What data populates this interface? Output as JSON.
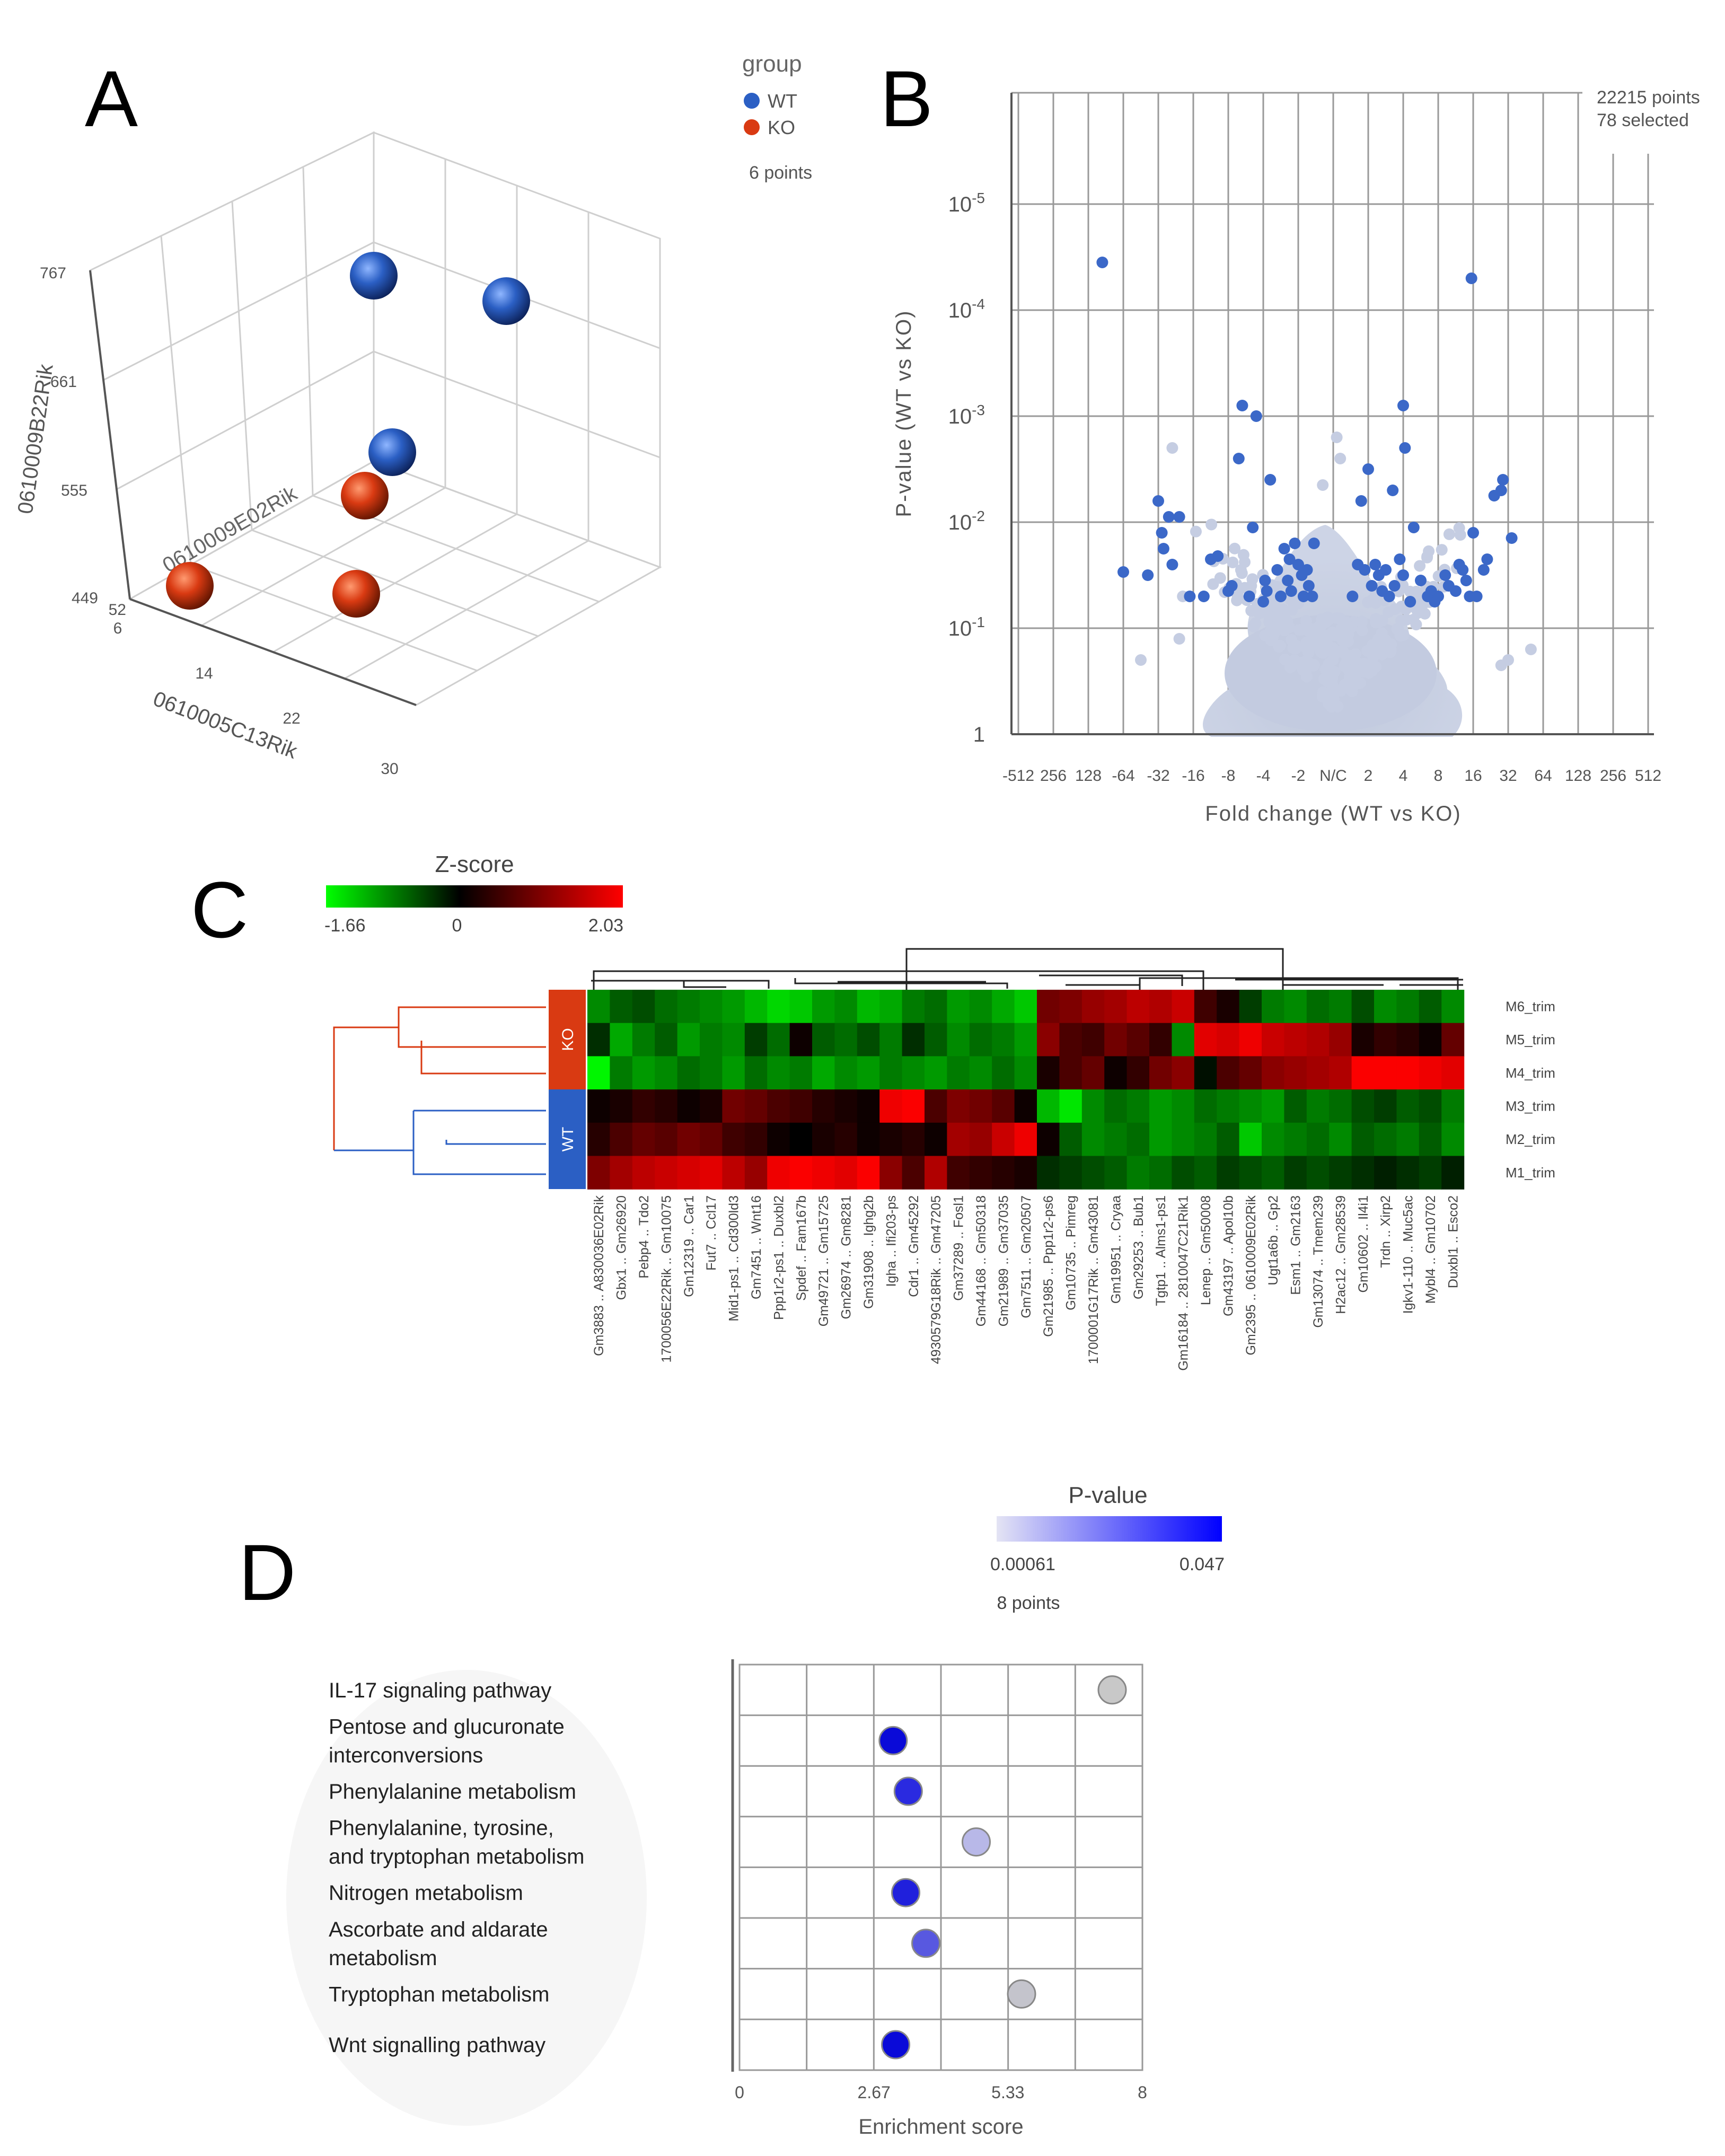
{
  "panels": {
    "a": "A",
    "b": "B",
    "c": "C",
    "d": "D"
  },
  "colors": {
    "wt": "#2b5fc4",
    "ko": "#d93a12",
    "volcano_grey": "#bfc8dc",
    "volcano_blue": "#3b68c8"
  },
  "chart_data": [
    {
      "id": "pca3d",
      "type": "scatter",
      "legend": {
        "title": "group",
        "entries": [
          "WT",
          "KO"
        ],
        "points_label": "6 points",
        "placement": "top-right"
      },
      "axes": {
        "x": {
          "label": "0610005C13Rik",
          "ticks": [
            "6",
            "14",
            "22",
            "30"
          ]
        },
        "y": {
          "label": "0610009B22Rik",
          "ticks": [
            "449",
            "555",
            "661",
            "767"
          ]
        },
        "z": {
          "label": "0610009E02Rik",
          "ticks": [
            "52"
          ]
        }
      },
      "points": [
        {
          "group": "WT"
        },
        {
          "group": "WT"
        },
        {
          "group": "WT"
        },
        {
          "group": "KO"
        },
        {
          "group": "KO"
        },
        {
          "group": "KO"
        }
      ]
    },
    {
      "id": "volcano",
      "type": "scatter",
      "xlabel": "Fold change (WT vs KO)",
      "ylabel": "P-value (WT vs KO)",
      "x_ticks": [
        "-512",
        "256",
        "128",
        "-64",
        "-32",
        "-16",
        "-8",
        "-4",
        "-2",
        "N/C",
        "2",
        "4",
        "8",
        "16",
        "32",
        "64",
        "128",
        "256",
        "512"
      ],
      "y_ticks": [
        "1",
        "10-1",
        "10-2",
        "10-3",
        "10-4",
        "10-5"
      ],
      "y_scale": "log",
      "counts": [
        "22215 points",
        "78 selected"
      ],
      "selected_points": [
        [
          -6.6,
          4.45
        ],
        [
          -6.0,
          1.53
        ],
        [
          -5.0,
          2.2
        ],
        [
          -4.9,
          1.9
        ],
        [
          -4.85,
          1.75
        ],
        [
          -4.7,
          2.05
        ],
        [
          -4.6,
          1.6
        ],
        [
          -4.4,
          2.05
        ],
        [
          -3.5,
          1.65
        ],
        [
          -3.3,
          1.68
        ],
        [
          -3.0,
          1.35
        ],
        [
          -2.9,
          1.4
        ],
        [
          -2.7,
          2.6
        ],
        [
          -2.6,
          3.1
        ],
        [
          -2.4,
          1.3
        ],
        [
          -2.3,
          1.95
        ],
        [
          -2.2,
          3.0
        ],
        [
          -1.9,
          1.35
        ],
        [
          -1.8,
          2.4
        ],
        [
          -1.6,
          1.55
        ],
        [
          -1.5,
          1.3
        ],
        [
          -1.4,
          1.75
        ],
        [
          -1.3,
          1.45
        ],
        [
          -1.2,
          1.35
        ],
        [
          -1.1,
          1.8
        ],
        [
          -1.0,
          1.6
        ],
        [
          -0.9,
          1.5
        ],
        [
          -0.85,
          1.3
        ],
        [
          -0.75,
          1.55
        ],
        [
          -0.7,
          1.4
        ],
        [
          -0.6,
          1.3
        ],
        [
          0.7,
          1.6
        ],
        [
          0.8,
          2.2
        ],
        [
          0.9,
          1.55
        ],
        [
          1.0,
          2.5
        ],
        [
          1.1,
          1.4
        ],
        [
          1.2,
          1.6
        ],
        [
          1.3,
          1.5
        ],
        [
          1.4,
          1.35
        ],
        [
          1.6,
          1.3
        ],
        [
          1.7,
          2.3
        ],
        [
          1.75,
          1.4
        ],
        [
          2.0,
          3.1
        ],
        [
          2.05,
          2.7
        ],
        [
          2.0,
          1.5
        ],
        [
          2.3,
          1.95
        ],
        [
          2.5,
          1.45
        ],
        [
          2.7,
          1.3
        ],
        [
          2.8,
          1.35
        ],
        [
          2.9,
          1.25
        ],
        [
          3.0,
          1.3
        ],
        [
          3.2,
          1.5
        ],
        [
          3.5,
          1.35
        ],
        [
          3.6,
          1.6
        ],
        [
          3.8,
          1.45
        ],
        [
          3.9,
          1.3
        ],
        [
          3.95,
          4.3
        ],
        [
          4.0,
          1.9
        ],
        [
          4.1,
          1.3
        ],
        [
          4.3,
          1.55
        ],
        [
          4.4,
          1.65
        ],
        [
          4.6,
          2.25
        ],
        [
          4.8,
          2.3
        ],
        [
          4.85,
          2.4
        ],
        [
          5.1,
          1.85
        ],
        [
          -3.7,
          1.3
        ],
        [
          -2.0,
          1.25
        ],
        [
          -1.95,
          1.45
        ],
        [
          -1.25,
          1.65
        ],
        [
          -0.55,
          1.8
        ],
        [
          1.5,
          1.55
        ],
        [
          2.2,
          1.25
        ],
        [
          3.3,
          1.4
        ],
        [
          3.7,
          1.55
        ],
        [
          -5.3,
          1.5
        ],
        [
          -4.1,
          1.3
        ],
        [
          0.55,
          1.3
        ],
        [
          1.9,
          1.65
        ]
      ]
    },
    {
      "id": "heatmap",
      "type": "heatmap",
      "colorbar": {
        "title": "Z-score",
        "min_label": "-1.66",
        "mid_label": "0",
        "max_label": "2.03",
        "min": -1.66,
        "max": 2.03
      },
      "groups": [
        {
          "name": "KO",
          "color": "#d93a12"
        },
        {
          "name": "WT",
          "color": "#2b5fc4"
        }
      ],
      "rows": [
        "M6_trim",
        "M5_trim",
        "M4_trim",
        "M3_trim",
        "M2_trim",
        "M1_trim"
      ],
      "columns": [
        "Gm3883 .. A830036E02Rik",
        "Gbx1 .. Gm26920",
        "Pebp4 .. Tdo2",
        "1700056E22Rik .. Gm10075",
        "Gm12319 .. Car1",
        "Fut7 .. Ccl17",
        "Mid1-ps1 .. Cd300ld3",
        "Gm7451 .. Wnt16",
        "Ppp1r2-ps1 .. Duxbl2",
        "Spdef .. Fam167b",
        "Gm49721 .. Gm15725",
        "Gm26974 .. Gm8281",
        "Gm31908 .. Ighg2b",
        "Igha .. Ifi203-ps",
        "Cdr1 .. Gm45292",
        "4930579G18Rik .. Gm47205",
        "Gm37289 .. Fosl1",
        "Gm44168 .. Gm50318",
        "Gm21989 .. Gm37035",
        "Gm7511 .. Gm20507",
        "Gm21985 .. Ppp1r2-ps6",
        "Gm10735 .. Pimreg",
        "1700001G17Rik .. Gm43081",
        "Gm19951 .. Cryaa",
        "Gm29253 .. Bub1",
        "Tgtp1 .. Alms1-ps1",
        "Gm16184 .. 2810047C21Rik1",
        "Lenep .. Gm50008",
        "Gm43197 .. Apol10b",
        "Gm2395 .. 0610009E02Rik",
        "Ugt1a6b .. Gp2",
        "Esm1 .. Gm2163",
        "Gm13074 .. Tmem239",
        "H2ac12 .. Gm28539",
        "Gm10602 .. Il4i1",
        "Trdn .. Xirp2",
        "Igkv1-110 .. Muc5ac",
        "Mybl4 .. Gm10702",
        "Duxbl1 .. Esco2"
      ],
      "values": [
        [
          -0.9,
          -0.6,
          -0.5,
          -0.7,
          -0.8,
          -0.9,
          -1.0,
          -1.2,
          -1.4,
          -1.3,
          -1.0,
          -0.9,
          -1.2,
          -1.1,
          -0.8,
          -0.7,
          -1.0,
          -0.9,
          -1.1,
          -1.3,
          0.9,
          1.0,
          1.2,
          1.3,
          1.5,
          1.4,
          1.6,
          0.5,
          0.2,
          -0.4,
          -0.8,
          -0.9,
          -0.7,
          -0.8,
          -0.5,
          -0.9,
          -0.8,
          -0.6,
          -0.9
        ],
        [
          -0.3,
          -1.1,
          -0.8,
          -0.6,
          -1.0,
          -0.8,
          -0.9,
          -0.4,
          -0.7,
          0.1,
          -0.6,
          -0.7,
          -0.5,
          -0.8,
          -0.3,
          -0.6,
          -0.9,
          -0.7,
          -0.8,
          -1.0,
          1.1,
          0.6,
          0.5,
          0.9,
          0.7,
          0.4,
          -0.9,
          1.8,
          1.7,
          1.9,
          1.6,
          1.5,
          1.4,
          1.2,
          0.2,
          0.4,
          0.3,
          0.1,
          0.8
        ],
        [
          -1.6,
          -0.8,
          -1.0,
          -0.9,
          -0.7,
          -0.8,
          -1.0,
          -0.7,
          -0.9,
          -0.8,
          -1.1,
          -0.9,
          -1.0,
          -0.8,
          -0.9,
          -1.0,
          -0.8,
          -0.9,
          -0.7,
          -0.9,
          0.2,
          0.6,
          0.8,
          0.1,
          0.4,
          0.9,
          1.1,
          -0.1,
          0.6,
          0.8,
          1.1,
          1.2,
          1.3,
          1.4,
          2.0,
          2.0,
          2.0,
          1.9,
          1.8
        ],
        [
          0.1,
          0.2,
          0.4,
          0.3,
          0.1,
          0.2,
          0.9,
          0.8,
          0.6,
          0.5,
          0.3,
          0.2,
          0.1,
          1.9,
          2.0,
          0.6,
          1.0,
          0.9,
          0.7,
          0.1,
          -1.2,
          -1.5,
          -0.9,
          -0.7,
          -0.8,
          -1.0,
          -0.9,
          -0.7,
          -0.8,
          -0.9,
          -1.0,
          -0.6,
          -0.8,
          -0.7,
          -0.5,
          -0.4,
          -0.6,
          -0.5,
          -0.8
        ],
        [
          0.3,
          0.6,
          0.8,
          0.7,
          0.9,
          0.8,
          0.5,
          0.4,
          0.1,
          0.0,
          0.2,
          0.3,
          0.1,
          0.2,
          0.3,
          0.1,
          1.3,
          1.2,
          1.6,
          1.9,
          0.1,
          -0.6,
          -0.9,
          -0.8,
          -0.7,
          -1.0,
          -0.9,
          -0.8,
          -0.6,
          -1.3,
          -0.9,
          -0.8,
          -0.7,
          -0.9,
          -0.6,
          -0.7,
          -0.8,
          -0.6,
          -0.9
        ],
        [
          1.0,
          1.3,
          1.5,
          1.6,
          1.7,
          1.8,
          1.5,
          1.2,
          1.9,
          2.0,
          1.9,
          1.8,
          2.0,
          1.1,
          0.6,
          1.4,
          0.5,
          0.4,
          0.3,
          0.2,
          -0.3,
          -0.4,
          -0.5,
          -0.6,
          -0.8,
          -0.7,
          -0.5,
          -0.6,
          -0.4,
          -0.5,
          -0.6,
          -0.4,
          -0.5,
          -0.4,
          -0.3,
          -0.2,
          -0.3,
          -0.4,
          -0.2
        ]
      ]
    },
    {
      "id": "enrichment",
      "type": "scatter",
      "xlabel": "Enrichment score",
      "x_ticks": [
        "0",
        "2.67",
        "5.33",
        "8"
      ],
      "xlim": [
        0,
        8
      ],
      "colorbar": {
        "title": "P-value",
        "min_label": "0.00061",
        "max_label": "0.047"
      },
      "points_label": "8 points",
      "categories": [
        "IL-17 signaling pathway",
        "Pentose and glucuronate interconversions",
        "Phenylalanine metabolism",
        "Phenylalanine, tyrosine, and tryptophan metabolism",
        "Nitrogen metabolism",
        "Ascorbate and aldarate metabolism",
        "Tryptophan metabolism",
        "Wnt signalling pathway"
      ],
      "category_lines": [
        [
          "IL-17 signaling pathway"
        ],
        [
          "Pentose and glucuronate",
          "interconversions"
        ],
        [
          "Phenylalanine metabolism"
        ],
        [
          "Phenylalanine, tyrosine,",
          "and tryptophan metabolism"
        ],
        [
          "Nitrogen metabolism"
        ],
        [
          "Ascorbate and aldarate",
          "metabolism"
        ],
        [
          "Tryptophan metabolism"
        ],
        [
          "Wnt signalling pathway"
        ]
      ],
      "values": [
        7.4,
        3.05,
        3.35,
        4.7,
        3.3,
        3.7,
        5.6,
        3.1
      ],
      "point_colors": [
        "#c8c8c8",
        "#0a0ad8",
        "#2a2ae0",
        "#b8b8e8",
        "#2020dc",
        "#5858e0",
        "#c4c4cc",
        "#0a0ad8"
      ]
    }
  ]
}
